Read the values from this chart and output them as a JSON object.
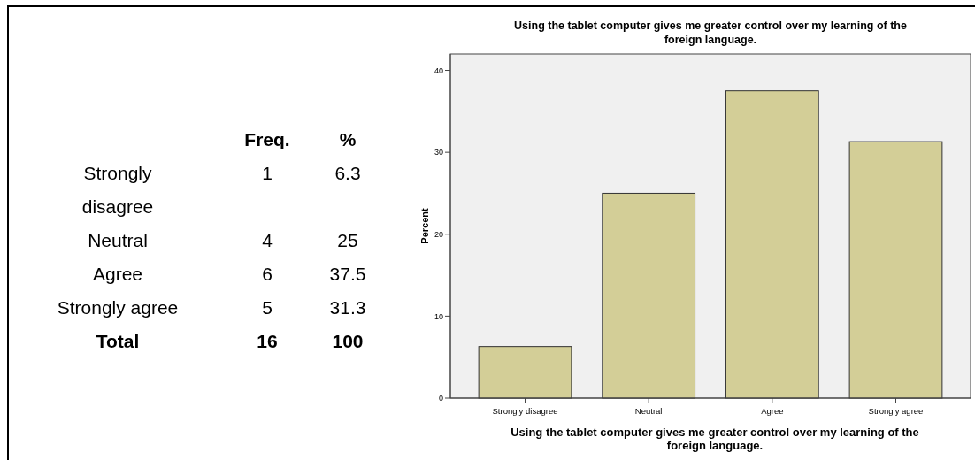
{
  "chart_data": [
    {
      "type": "other",
      "categories": [
        "Strongly disagree",
        "Neutral",
        "Agree",
        "Strongly agree"
      ],
      "series": [
        {
          "name": "Freq.",
          "values": [
            1,
            4,
            6,
            5
          ]
        },
        {
          "name": "%",
          "values": [
            6.3,
            25,
            37.5,
            31.3
          ]
        }
      ],
      "data_labels": true,
      "annotations": [
        "Total"
      ],
      "totals": [
        "16",
        "100"
      ]
    },
    {
      "type": "bar",
      "title": "Using the tablet computer gives me greater control over my learning of the foreign language.",
      "xlabel": "Using the tablet computer gives me greater control over my learning of the foreign language.",
      "ylabel": "Percent",
      "categories": [
        "Strongly disagree",
        "Neutral",
        "Agree",
        "Strongly agree"
      ],
      "values": [
        6.3,
        25,
        37.5,
        31.3
      ],
      "color": "#d3ce97",
      "ylim": [
        0,
        42
      ],
      "yticks": [
        0,
        10,
        20,
        30,
        40
      ]
    }
  ]
}
